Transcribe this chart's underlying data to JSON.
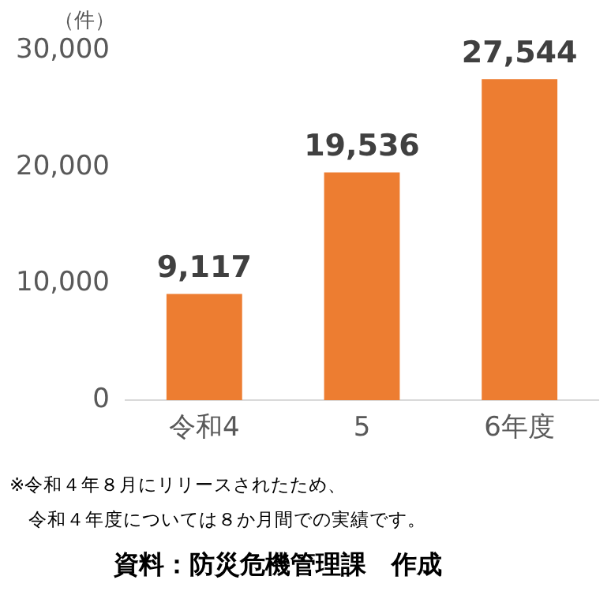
{
  "chart_data": {
    "type": "bar",
    "ylabel": "（件）",
    "categories": [
      "令和4",
      "5",
      "6年度"
    ],
    "values": [
      9117,
      19536,
      27544
    ],
    "color": "#ed7d31",
    "ylim": [
      0,
      30000
    ],
    "yticks": [
      0,
      {
        "value": 10000,
        "label": "10,000"
      },
      {
        "value": 20000,
        "label": "20,000"
      },
      {
        "value": 30000,
        "label": "30,000"
      }
    ],
    "grid": false,
    "legend": false,
    "value_labels": [
      "9,117",
      "19,536",
      "27,544"
    ],
    "annotations": [
      "※令和４年８月にリリースされたため、",
      "令和４年度については８か月間での実績です。",
      "資料：防災危機管理課　作成"
    ]
  }
}
